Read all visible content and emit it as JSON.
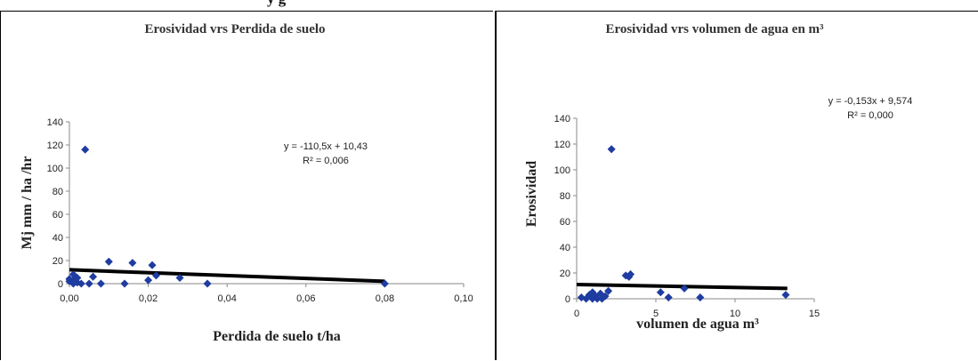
{
  "top_text": "y                  g",
  "chart_data": [
    {
      "type": "scatter",
      "title": "Erosividad vrs Perdida de suelo",
      "xlabel": "Perdida de suelo t/ha",
      "ylabel": "Mj mm / ha /hr",
      "xlim": [
        0,
        0.1
      ],
      "ylim": [
        0,
        140
      ],
      "xticks": [
        "0,00",
        "0,02",
        "0,04",
        "0,06",
        "0,08",
        "0,10"
      ],
      "yticks": [
        "0",
        "20",
        "40",
        "60",
        "80",
        "100",
        "120",
        "140"
      ],
      "equation": "y = -110,5x + 10,43",
      "r2": "R² = 0,006",
      "trend": {
        "x": [
          0.0,
          0.08
        ],
        "y": [
          12.0,
          2.0
        ]
      },
      "marker_color": "#1f3ca0",
      "points": [
        [
          0.0,
          2
        ],
        [
          0.0,
          4
        ],
        [
          0.001,
          0
        ],
        [
          0.001,
          3
        ],
        [
          0.001,
          8
        ],
        [
          0.002,
          1
        ],
        [
          0.002,
          5
        ],
        [
          0.003,
          0
        ],
        [
          0.004,
          116
        ],
        [
          0.005,
          0
        ],
        [
          0.006,
          6
        ],
        [
          0.008,
          0
        ],
        [
          0.01,
          19
        ],
        [
          0.014,
          0
        ],
        [
          0.016,
          18
        ],
        [
          0.02,
          3
        ],
        [
          0.021,
          16
        ],
        [
          0.022,
          7
        ],
        [
          0.028,
          5
        ],
        [
          0.035,
          0
        ],
        [
          0.08,
          0
        ]
      ]
    },
    {
      "type": "scatter",
      "title": "Erosividad vrs volumen de agua en m³",
      "xlabel": "volumen de agua m³",
      "ylabel": "Erosividad",
      "xlim": [
        0,
        15
      ],
      "ylim": [
        0,
        140
      ],
      "xticks": [
        "0",
        "5",
        "10",
        "15"
      ],
      "yticks": [
        "0",
        "20",
        "40",
        "60",
        "80",
        "100",
        "120",
        "140"
      ],
      "equation": "y = -0,153x + 9,574",
      "r2": "R² = 0,000",
      "trend": {
        "x": [
          0.0,
          13.3
        ],
        "y": [
          11.0,
          8.0
        ]
      },
      "marker_color": "#1f3ca0",
      "points": [
        [
          0.3,
          1
        ],
        [
          0.6,
          0
        ],
        [
          0.8,
          3
        ],
        [
          1.0,
          0
        ],
        [
          1.0,
          5
        ],
        [
          1.2,
          2
        ],
        [
          1.3,
          0
        ],
        [
          1.5,
          4
        ],
        [
          1.6,
          0
        ],
        [
          1.8,
          2
        ],
        [
          2.0,
          6
        ],
        [
          2.2,
          116
        ],
        [
          3.1,
          18
        ],
        [
          3.3,
          17
        ],
        [
          3.4,
          19
        ],
        [
          5.3,
          5
        ],
        [
          5.8,
          1
        ],
        [
          6.8,
          8
        ],
        [
          7.8,
          1
        ],
        [
          13.2,
          3
        ]
      ]
    }
  ]
}
